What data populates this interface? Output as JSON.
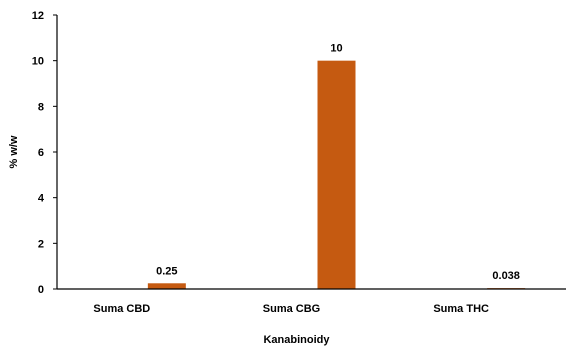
{
  "chart_data": {
    "type": "bar",
    "title": "",
    "xlabel": "Kanabinoidy",
    "ylabel": "% w/w",
    "categories": [
      "Suma CBD",
      "Suma CBG",
      "Suma THC"
    ],
    "values": [
      0.25,
      10,
      0.038
    ],
    "data_labels": [
      "0.25",
      "10",
      "0.038"
    ],
    "ylim": [
      0,
      12
    ],
    "yticks": [
      0,
      2,
      4,
      6,
      8,
      10,
      12
    ],
    "grid": false,
    "legend": "none",
    "bar_color": "#C55A11"
  }
}
